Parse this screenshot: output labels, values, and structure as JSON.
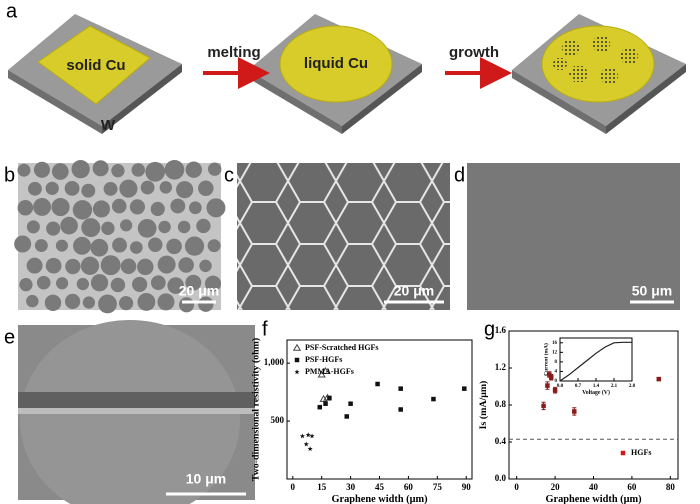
{
  "panels": [
    "a",
    "b",
    "c",
    "d",
    "e",
    "f",
    "g"
  ],
  "diagram": {
    "solid": "solid Cu",
    "substrate": "W",
    "step1": "melting",
    "liquid": "liquid Cu",
    "step2": "growth"
  },
  "scale_bars": [
    "20 μm",
    "20 μm",
    "50 μm",
    "10 μm"
  ],
  "chart_data": [
    {
      "type": "scatter",
      "xlabel": "Graphene width (μm)",
      "ylabel": "Two-dimensional resistivity (ohm)",
      "xlim": [
        -3,
        93
      ],
      "xticks": [
        0,
        15,
        30,
        45,
        60,
        75,
        90
      ],
      "ylim": [
        0,
        1200
      ],
      "yticks": [
        500,
        {
          "value": 1000,
          "label": "1,000"
        }
      ],
      "legend": "upper left",
      "series": [
        {
          "name": "PSF-Scratched HGFs",
          "marker": "open-triangle",
          "color": "#444",
          "x": [
            15,
            17,
            16,
            18
          ],
          "values": [
            900,
            930,
            690,
            700
          ]
        },
        {
          "name": "PSF-HGFs",
          "marker": "square",
          "color": "#111",
          "x": [
            14,
            17,
            19,
            28,
            30,
            44,
            56,
            56,
            73,
            89
          ],
          "values": [
            620,
            650,
            700,
            540,
            650,
            820,
            600,
            780,
            690,
            780
          ]
        },
        {
          "name": "PMMA-HGFs",
          "marker": "star",
          "color": "#111",
          "x": [
            5,
            7,
            8,
            9,
            10
          ],
          "values": [
            370,
            300,
            380,
            260,
            370
          ]
        }
      ]
    },
    {
      "type": "scatter",
      "xlabel": "Graphene width (μm)",
      "ylabel": "Is (mA/μm)",
      "xlim": [
        -4,
        84
      ],
      "xticks": [
        0,
        20,
        40,
        60,
        80
      ],
      "ylim": [
        0,
        1.6
      ],
      "yticks": [
        {
          "value": 0,
          "label": "0.0"
        },
        0.4,
        0.8,
        1.2,
        1.6
      ],
      "hline": 0.43,
      "legend": "lower right",
      "series": [
        {
          "name": "HGFs",
          "marker": "square",
          "color": "#8b1a1a",
          "x": [
            14,
            16,
            17,
            18,
            20,
            30,
            74
          ],
          "values": [
            0.79,
            1.01,
            1.13,
            1.1,
            0.96,
            0.73,
            1.08
          ],
          "errors": [
            0.04,
            0.04,
            0.03,
            0.03,
            0.03,
            0.04,
            0.01
          ]
        }
      ]
    },
    {
      "type": "line",
      "xlabel": "Voltage (V)",
      "ylabel": "Current (mA)",
      "xlim": [
        0,
        2.8
      ],
      "xticks": [
        {
          "value": 0,
          "label": "0.0"
        },
        0.7,
        1.4,
        2.1,
        2.8
      ],
      "ylim": [
        0,
        18
      ],
      "yticks": [
        0,
        4,
        8,
        12,
        16
      ],
      "series": [
        {
          "color": "#222",
          "x": [
            0,
            0.35,
            0.7,
            1.05,
            1.4,
            1.75,
            2.1,
            2.45,
            2.8
          ],
          "values": [
            0,
            2.6,
            5.6,
            8.6,
            11.6,
            14.2,
            16,
            16.2,
            16.2
          ]
        }
      ]
    }
  ]
}
